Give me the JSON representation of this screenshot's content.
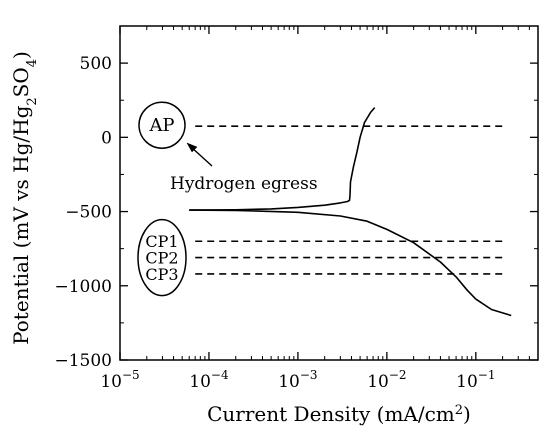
{
  "chart_data": {
    "type": "line",
    "title": "",
    "xlabel": {
      "base": "Current Density (mA/cm",
      "sup": "2",
      "tail": ")"
    },
    "ylabel": {
      "parts": [
        {
          "t": "Potential (mV vs Hg/Hg",
          "s": "normal"
        },
        {
          "t": "2",
          "s": "sub"
        },
        {
          "t": "SO",
          "s": "normal"
        },
        {
          "t": "4",
          "s": "sub"
        },
        {
          "t": ")",
          "s": "normal"
        }
      ]
    },
    "x_scale": "log",
    "xlim": [
      1e-05,
      0.5
    ],
    "ylim": [
      -1500,
      750
    ],
    "x_ticks": [
      {
        "value": 1e-05,
        "base": "10",
        "exp": "−5"
      },
      {
        "value": 0.0001,
        "base": "10",
        "exp": "−4"
      },
      {
        "value": 0.001,
        "base": "10",
        "exp": "−3"
      },
      {
        "value": 0.01,
        "base": "10",
        "exp": "−2"
      },
      {
        "value": 0.1,
        "base": "10",
        "exp": "−1"
      }
    ],
    "y_ticks": [
      {
        "value": 500,
        "label": "500"
      },
      {
        "value": 0,
        "label": "0"
      },
      {
        "value": -500,
        "label": "−500"
      },
      {
        "value": -1000,
        "label": "−1000"
      },
      {
        "value": -1500,
        "label": "−1500"
      }
    ],
    "grid": false,
    "legend": "none",
    "curve": {
      "name": "",
      "color": "#000000",
      "anodic_branch": [
        [
          6e-05,
          -490
        ],
        [
          0.0002,
          -488
        ],
        [
          0.0005,
          -482
        ],
        [
          0.001,
          -472
        ],
        [
          0.002,
          -457
        ],
        [
          0.003,
          -442
        ],
        [
          0.0036,
          -432
        ],
        [
          0.0038,
          -425
        ],
        [
          0.00385,
          -390
        ],
        [
          0.0039,
          -300
        ],
        [
          0.0042,
          -200
        ],
        [
          0.0046,
          -100
        ],
        [
          0.005,
          0
        ],
        [
          0.0056,
          100
        ],
        [
          0.0066,
          170
        ],
        [
          0.0073,
          200
        ]
      ],
      "cathodic_branch": [
        [
          6e-05,
          -490
        ],
        [
          0.0002,
          -492
        ],
        [
          0.001,
          -505
        ],
        [
          0.003,
          -530
        ],
        [
          0.006,
          -565
        ],
        [
          0.01,
          -620
        ],
        [
          0.02,
          -710
        ],
        [
          0.04,
          -840
        ],
        [
          0.06,
          -940
        ],
        [
          0.08,
          -1030
        ],
        [
          0.1,
          -1090
        ],
        [
          0.15,
          -1160
        ],
        [
          0.25,
          -1200
        ]
      ]
    },
    "reference_lines": [
      {
        "name": "AP",
        "y": 75,
        "x_start": 6e-05,
        "x_end": 0.2,
        "style": "dashed"
      },
      {
        "name": "CP1",
        "y": -700,
        "x_start": 6e-05,
        "x_end": 0.2,
        "style": "dashed"
      },
      {
        "name": "CP2",
        "y": -810,
        "x_start": 6e-05,
        "x_end": 0.2,
        "style": "dashed"
      },
      {
        "name": "CP3",
        "y": -920,
        "x_start": 6e-05,
        "x_end": 0.2,
        "style": "dashed"
      }
    ],
    "annotations": {
      "ap_label": "AP",
      "cp_labels": [
        "CP1",
        "CP2",
        "CP3"
      ],
      "hydrogen_label": "Hydrogen egress"
    }
  }
}
